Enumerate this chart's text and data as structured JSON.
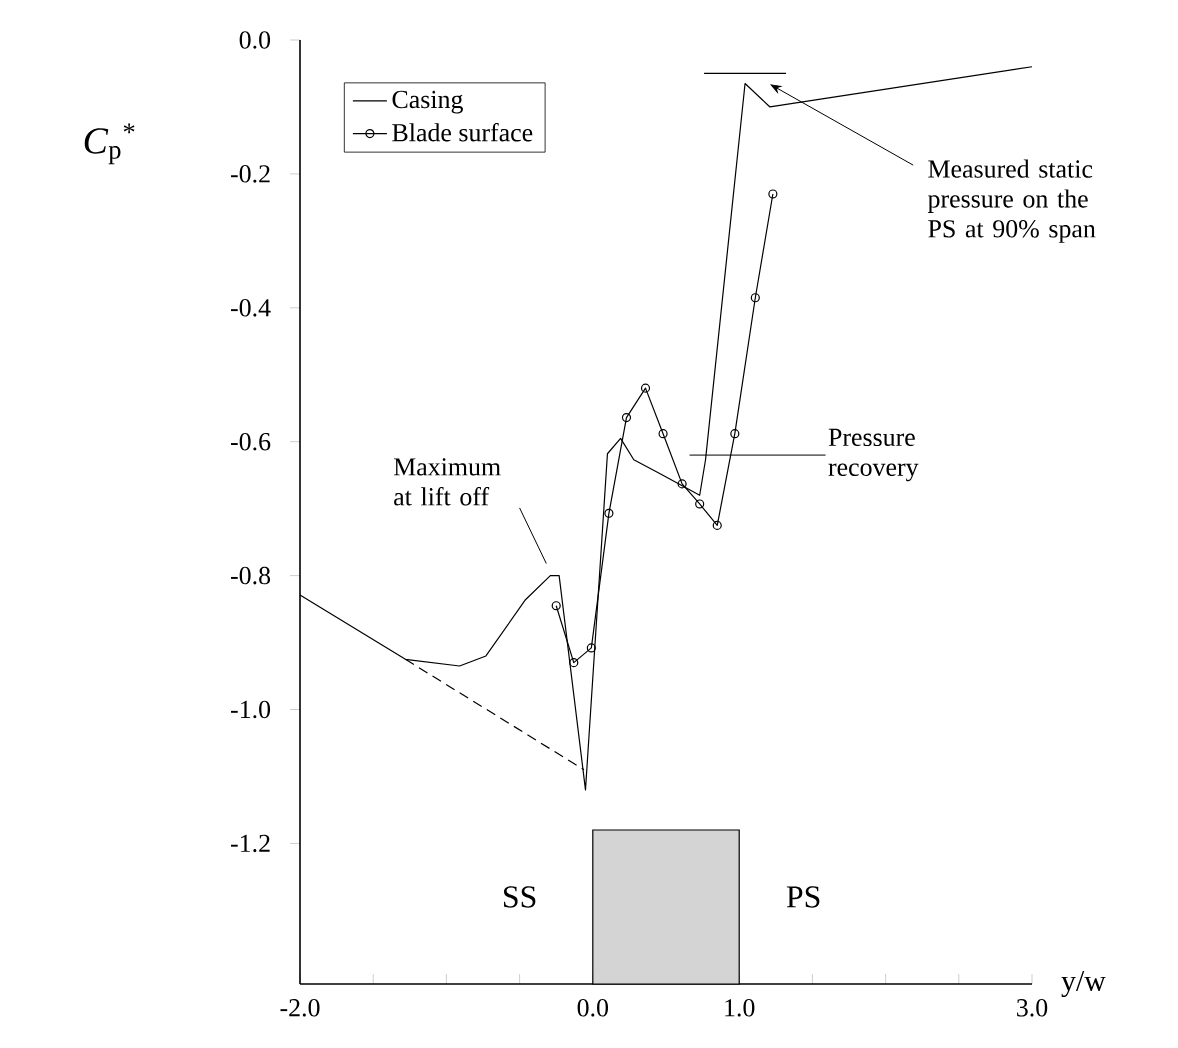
{
  "chart_data": {
    "type": "line",
    "xlabel": "y/w",
    "ylabel": "*C*$_{p}$$^{*}$",
    "xlim": [
      -2,
      3
    ],
    "ylim": [
      -1.41,
      0
    ],
    "xticks": [
      {
        "value": -2,
        "label": "-2.0"
      },
      {
        "value": -1.5,
        "label": null
      },
      {
        "value": -1,
        "label": null
      },
      {
        "value": -0.5,
        "label": null
      },
      {
        "value": 0,
        "label": "0.0"
      },
      {
        "value": 0.5,
        "label": null
      },
      {
        "value": 1,
        "label": "1.0"
      },
      {
        "value": 1.5,
        "label": null
      },
      {
        "value": 2,
        "label": null
      },
      {
        "value": 2.5,
        "label": null
      },
      {
        "value": 3,
        "label": "3.0"
      }
    ],
    "yticks": [
      {
        "value": 0,
        "label": "0.0"
      },
      {
        "value": -0.2,
        "label": "-0.2"
      },
      {
        "value": -0.4,
        "label": "-0.4"
      },
      {
        "value": -0.6,
        "label": "-0.6"
      },
      {
        "value": -0.8,
        "label": "-0.8"
      },
      {
        "value": -1.0,
        "label": "-1.0"
      },
      {
        "value": -1.2,
        "label": "-1.2"
      }
    ],
    "legend": "top left",
    "marker": "none",
    "line_style": "solid",
    "series": [
      {
        "name": "Casing",
        "color": "#000000",
        "x": [
          -2,
          -1.28,
          -0.91,
          -0.73,
          -0.46,
          -0.29,
          -0.23,
          -0.05,
          0.1,
          0.19,
          0.28,
          0.46,
          0.73,
          0.77,
          1.04,
          1.21,
          3.0
        ],
        "values": [
          -0.829,
          -0.925,
          -0.935,
          -0.92,
          -0.836,
          -0.8,
          -0.8,
          -1.12,
          -0.618,
          -0.595,
          -0.627,
          -0.648,
          -0.68,
          -0.627,
          -0.065,
          -0.1,
          -0.04
        ]
      },
      {
        "name": "Blade surface",
        "color": "#000000",
        "marker": "circle",
        "x": [
          -0.25,
          -0.13,
          -0.01,
          0.11,
          0.23,
          0.36,
          0.48,
          0.61,
          0.73,
          0.85,
          0.97,
          1.11,
          1.23
        ],
        "values": [
          -0.845,
          -0.93,
          -0.908,
          -0.707,
          -0.564,
          -0.52,
          -0.588,
          -0.663,
          -0.693,
          -0.725,
          -0.588,
          -0.385,
          -0.23
        ]
      },
      {
        "color": "#000000",
        "line_style": "dashed",
        "x": [
          -1.28,
          -0.06
        ],
        "values": [
          -0.925,
          -1.09
        ]
      },
      {
        "color": "#000000",
        "x": [
          0.76,
          1.32
        ],
        "values": [
          -0.05,
          -0.05
        ]
      },
      {
        "type": "bar",
        "color": "#d4d4d4",
        "x": [
          0.5
        ],
        "base": [
          -1.41
        ],
        "values": [
          0.23
        ]
      }
    ],
    "annotations": [
      {
        "text": "Maximum at lift off",
        "x": -0.3,
        "y": -0.79
      },
      "Pressure recovery",
      "Measured static pressure on the PS at 90% span",
      "SS",
      "PS"
    ]
  }
}
